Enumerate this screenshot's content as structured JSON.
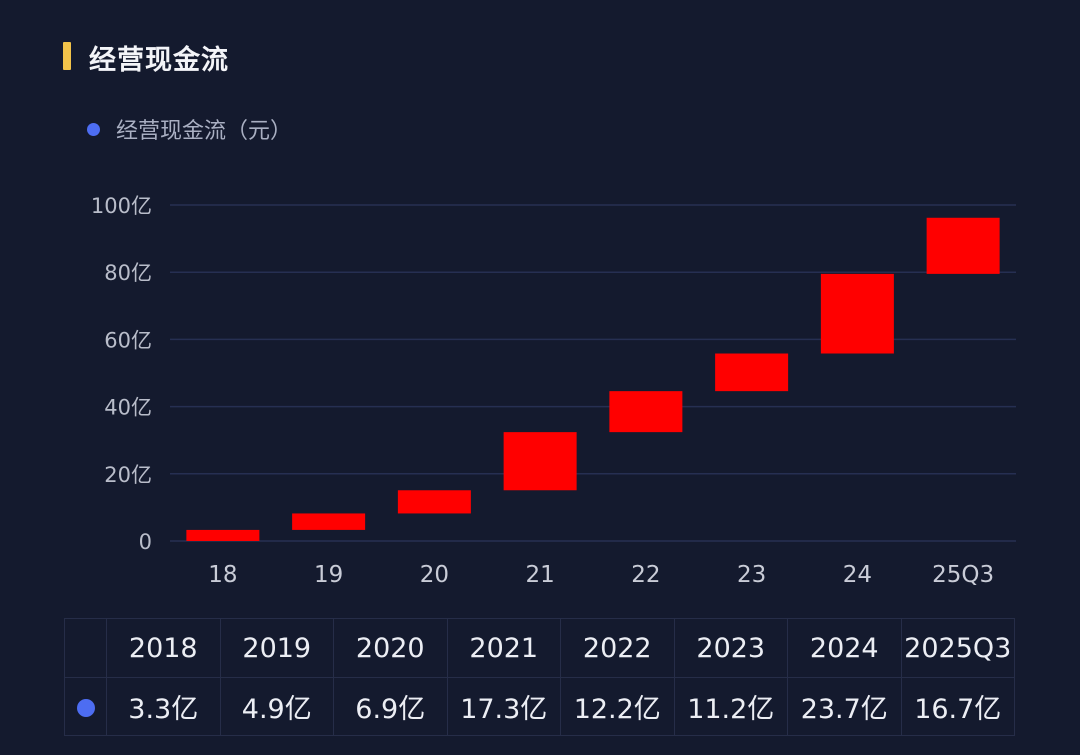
{
  "title": "经营现金流",
  "colors": {
    "accent": "#f2c34a",
    "bar": "#ff0000",
    "legend_dot": "#4d6df2",
    "background": "#141a2e"
  },
  "chart_data": {
    "type": "bar",
    "subtype": "waterfall",
    "title": "经营现金流",
    "legend": [
      "经营现金流（元）"
    ],
    "categories": [
      "18",
      "19",
      "20",
      "21",
      "22",
      "23",
      "24",
      "25Q3"
    ],
    "series": [
      {
        "name": "经营现金流（元）",
        "values": [
          3.3,
          4.9,
          6.9,
          17.3,
          12.2,
          11.2,
          23.7,
          16.7
        ]
      }
    ],
    "ylim": [
      0,
      100
    ],
    "yticks": [
      "0",
      "20亿",
      "40亿",
      "60亿",
      "80亿",
      "100亿"
    ],
    "ytick_values": [
      0,
      20,
      40,
      60,
      80,
      100
    ],
    "grid": true
  },
  "table": {
    "headers": [
      "2018",
      "2019",
      "2020",
      "2021",
      "2022",
      "2023",
      "2024",
      "2025Q3"
    ],
    "values": [
      "3.3亿",
      "4.9亿",
      "6.9亿",
      "17.3亿",
      "12.2亿",
      "11.2亿",
      "23.7亿",
      "16.7亿"
    ]
  }
}
